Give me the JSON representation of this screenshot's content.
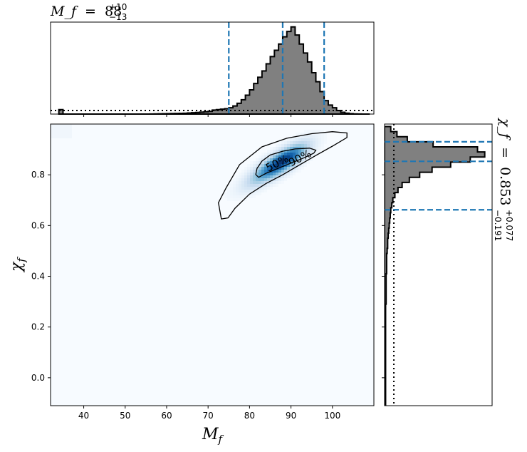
{
  "chart_data": [
    {
      "type": "heatmap",
      "panel": "joint",
      "xlabel": "M_f",
      "ylabel": "χ_f",
      "xlim": [
        32,
        110
      ],
      "ylim": [
        -0.11,
        1.0
      ],
      "xticks": [
        40,
        50,
        60,
        70,
        80,
        90,
        100
      ],
      "yticks": [
        0.0,
        0.2,
        0.4,
        0.6,
        0.8
      ],
      "colormap": "Blues",
      "density_peak": [
        88,
        0.853
      ],
      "contours": [
        {
          "label": "50%",
          "points": [
            [
              82.2,
              0.79
            ],
            [
              84,
              0.806
            ],
            [
              87,
              0.826
            ],
            [
              90,
              0.846
            ],
            [
              93,
              0.866
            ],
            [
              95.5,
              0.885
            ],
            [
              96,
              0.897
            ],
            [
              94.5,
              0.905
            ],
            [
              91,
              0.902
            ],
            [
              88,
              0.893
            ],
            [
              85,
              0.878
            ],
            [
              83,
              0.854
            ],
            [
              81.8,
              0.825
            ],
            [
              81.5,
              0.801
            ]
          ]
        },
        {
          "label": "90%",
          "points": [
            [
              74.8,
              0.63
            ],
            [
              76.5,
              0.668
            ],
            [
              80,
              0.724
            ],
            [
              84,
              0.766
            ],
            [
              88,
              0.8
            ],
            [
              92,
              0.838
            ],
            [
              96,
              0.876
            ],
            [
              100,
              0.913
            ],
            [
              103.5,
              0.947
            ],
            [
              103.5,
              0.965
            ],
            [
              100,
              0.97
            ],
            [
              95,
              0.962
            ],
            [
              89,
              0.944
            ],
            [
              83,
              0.91
            ],
            [
              77.6,
              0.84
            ],
            [
              74.4,
              0.75
            ],
            [
              72.5,
              0.69
            ],
            [
              73.2,
              0.626
            ]
          ]
        }
      ]
    },
    {
      "type": "bar",
      "panel": "top-marginal",
      "title": {
        "symbol": "M_f",
        "equals": "=",
        "median": "88",
        "plus": "+10",
        "minus": "−13"
      },
      "bin_edges": [
        34,
        35,
        36,
        37,
        38,
        39,
        40,
        41,
        42,
        43,
        44,
        45,
        46,
        47,
        48,
        49,
        50,
        51,
        52,
        53,
        54,
        55,
        56,
        57,
        58,
        59,
        60,
        61,
        62,
        63,
        64,
        65,
        66,
        67,
        68,
        69,
        70,
        71,
        72,
        73,
        74,
        75,
        76,
        77,
        78,
        79,
        80,
        81,
        82,
        83,
        84,
        85,
        86,
        87,
        88,
        89,
        90,
        91,
        92,
        93,
        94,
        95,
        96,
        97,
        98,
        99,
        100,
        101,
        102,
        103,
        104,
        105,
        106,
        107,
        108,
        109
      ],
      "values": [
        0.05,
        0,
        0,
        0,
        0,
        0,
        0,
        0,
        0,
        0,
        0,
        0,
        0,
        0,
        0,
        0,
        0,
        0,
        0,
        0,
        0,
        0,
        0.001,
        0.002,
        0.003,
        0.004,
        0.005,
        0.006,
        0.007,
        0.008,
        0.009,
        0.012,
        0.015,
        0.018,
        0.022,
        0.026,
        0.03,
        0.045,
        0.05,
        0.055,
        0.06,
        0.07,
        0.09,
        0.12,
        0.16,
        0.21,
        0.27,
        0.34,
        0.41,
        0.48,
        0.56,
        0.64,
        0.71,
        0.78,
        0.86,
        0.92,
        0.97,
        0.88,
        0.78,
        0.68,
        0.58,
        0.46,
        0.36,
        0.25,
        0.15,
        0.1,
        0.07,
        0.04,
        0.02,
        0.01,
        0.005,
        0.002,
        0.001,
        0,
        0
      ],
      "prior_level": 0.04,
      "quantile_lines": [
        75,
        88,
        98
      ]
    },
    {
      "type": "bar",
      "panel": "right-marginal",
      "orientation": "horizontal",
      "title": {
        "symbol": "χ_f",
        "equals": "=",
        "median": "0.853",
        "plus": "+0.077",
        "minus": "−0.191"
      },
      "bin_edges": [
        -0.11,
        -0.09,
        -0.07,
        -0.05,
        -0.03,
        -0.01,
        0.01,
        0.03,
        0.05,
        0.07,
        0.09,
        0.11,
        0.13,
        0.15,
        0.17,
        0.19,
        0.21,
        0.23,
        0.25,
        0.27,
        0.29,
        0.31,
        0.33,
        0.35,
        0.37,
        0.39,
        0.41,
        0.43,
        0.45,
        0.47,
        0.49,
        0.51,
        0.53,
        0.55,
        0.57,
        0.59,
        0.61,
        0.63,
        0.65,
        0.67,
        0.69,
        0.71,
        0.73,
        0.75,
        0.77,
        0.79,
        0.81,
        0.83,
        0.85,
        0.87,
        0.89,
        0.91,
        0.93,
        0.95,
        0.97,
        0.99
      ],
      "values": [
        0.01,
        0.01,
        0.01,
        0.01,
        0.01,
        0.01,
        0.01,
        0.01,
        0.01,
        0.01,
        0.01,
        0.01,
        0.01,
        0.01,
        0.01,
        0.01,
        0.01,
        0.01,
        0.01,
        0.01,
        0.015,
        0.015,
        0.015,
        0.015,
        0.015,
        0.015,
        0.02,
        0.02,
        0.02,
        0.02,
        0.025,
        0.03,
        0.03,
        0.035,
        0.04,
        0.045,
        0.05,
        0.055,
        0.06,
        0.07,
        0.08,
        0.1,
        0.13,
        0.17,
        0.24,
        0.34,
        0.46,
        0.64,
        0.83,
        0.97,
        0.9,
        0.47,
        0.22,
        0.12,
        0.06
      ],
      "prior_level": 0.09,
      "quantile_lines": [
        0.662,
        0.853,
        0.93
      ]
    }
  ]
}
